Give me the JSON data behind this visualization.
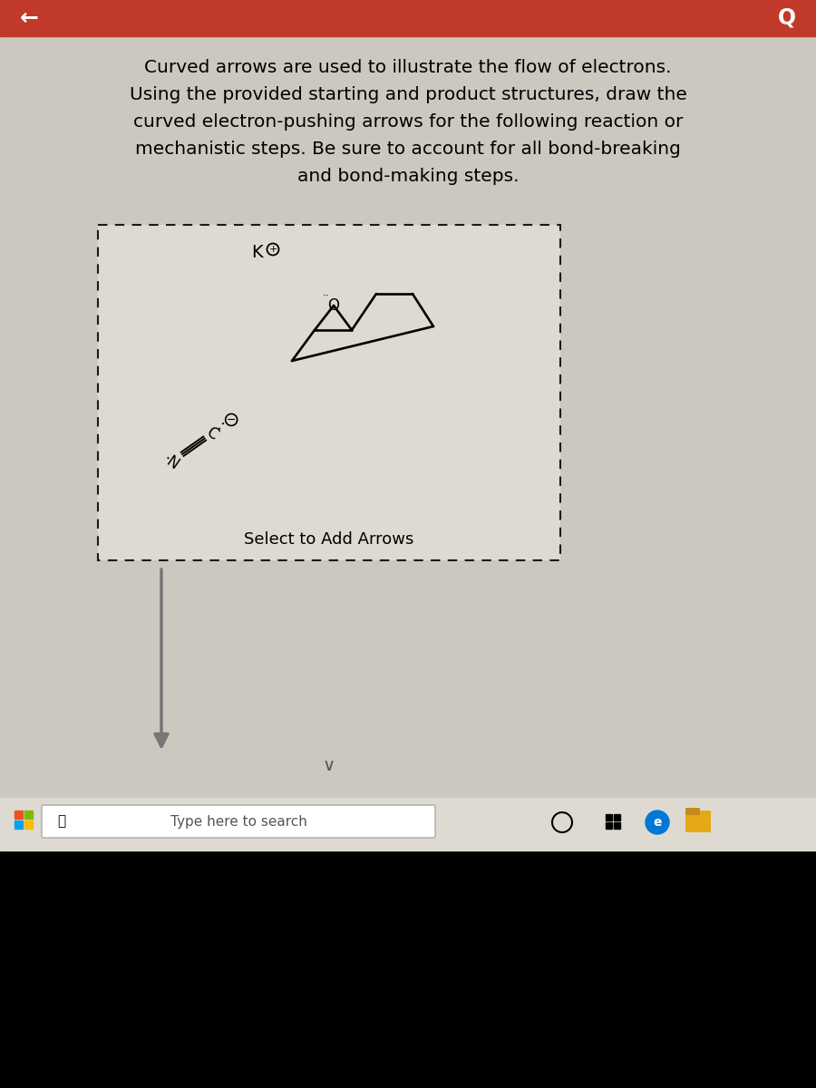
{
  "header_color": "#c0392b",
  "bg_color": "#ccc8c0",
  "box_bg": "#dedad2",
  "back_arrow": "←",
  "q_text": "Q",
  "title_lines": [
    "Curved arrows are used to illustrate the flow of electrons.",
    "Using the provided starting and product structures, draw the",
    "curved electron-pushing arrows for the following reaction or",
    "mechanistic steps. Be sure to account for all bond-breaking",
    "and bond-making steps."
  ],
  "select_text": "Select to Add Arrows",
  "taskbar_text": "Type here to search",
  "ko_text": "K",
  "ko_charge": "⊕",
  "o_text": "O",
  "n_text": "·N",
  "c_text": "C",
  "c_charge": "⊖"
}
